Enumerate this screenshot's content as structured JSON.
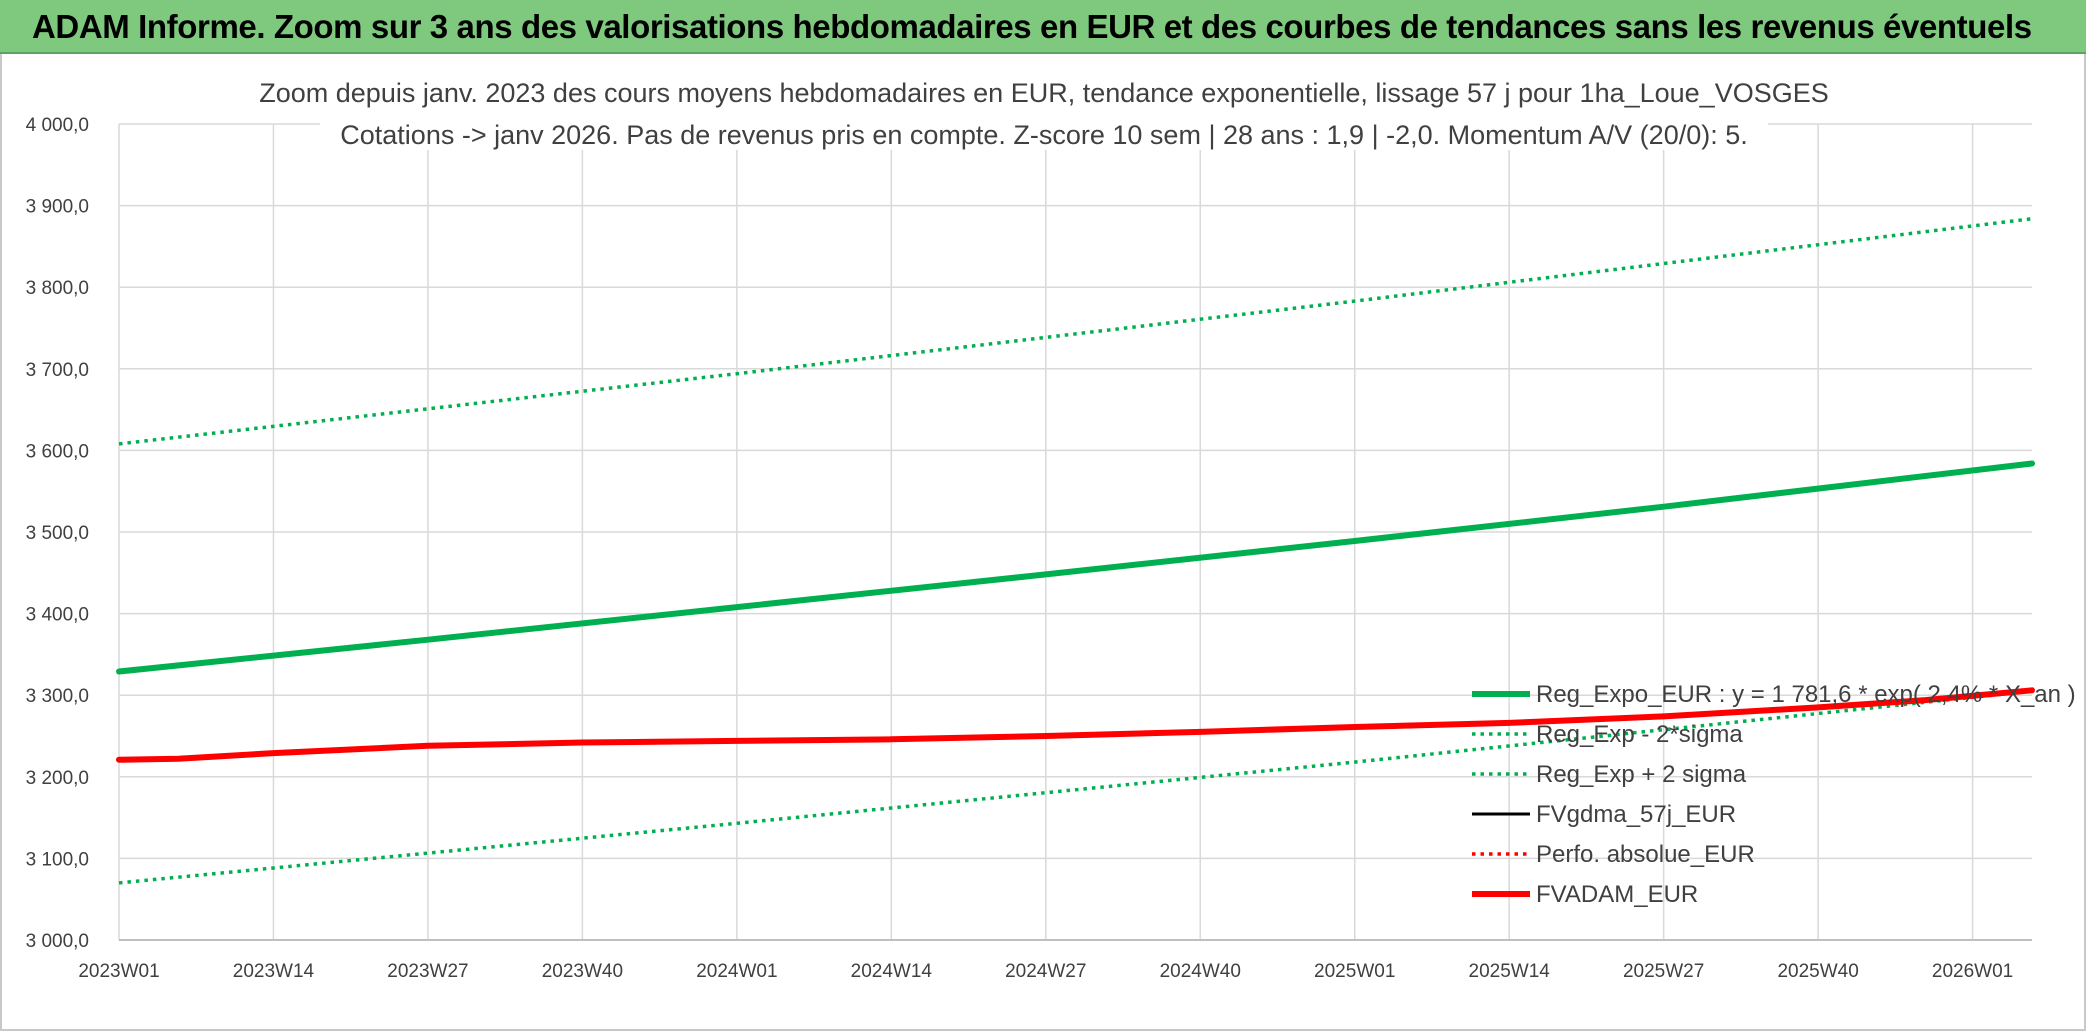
{
  "banner": {
    "title": "ADAM Informe. Zoom sur 3 ans des valorisations hebdomadaires en EUR et des courbes de tendances sans les revenus éventuels"
  },
  "chart_data": {
    "type": "line",
    "title_line1": "Zoom depuis janv. 2023 des cours moyens hebdomadaires en EUR, tendance exponentielle, lissage 57 j pour 1ha_Loue_VOSGES",
    "title_line2": "Cotations -> janv 2026. Pas de revenus pris en compte. Z-score 10 sem | 28 ans : 1,9 | -2,0. Momentum A/V (20/0): 5.",
    "x_tick_labels": [
      "2023W01",
      "2023W14",
      "2023W27",
      "2023W40",
      "2024W01",
      "2024W14",
      "2024W27",
      "2024W40",
      "2025W01",
      "2025W14",
      "2025W27",
      "2025W40",
      "2026W01"
    ],
    "x_range_weeks": [
      0,
      161
    ],
    "ylim": [
      3000,
      4000
    ],
    "y_ticks": [
      3000,
      3100,
      3200,
      3300,
      3400,
      3500,
      3600,
      3700,
      3800,
      3900,
      4000
    ],
    "y_tick_labels": [
      "3 000,0",
      "3 100,0",
      "3 200,0",
      "3 300,0",
      "3 400,0",
      "3 500,0",
      "3 600,0",
      "3 700,0",
      "3 800,0",
      "3 900,0",
      "4 000,0"
    ],
    "grid": true,
    "legend_position": "bottom-right",
    "series": [
      {
        "name": "Reg_Expo_EUR : y = 1 781,6 * exp( 2,4% * X_an )",
        "color": "#00b050",
        "style": "solid-thick",
        "points": [
          [
            0,
            3329
          ],
          [
            26,
            3368
          ],
          [
            52,
            3408
          ],
          [
            78,
            3448
          ],
          [
            104,
            3489
          ],
          [
            130,
            3531
          ],
          [
            161,
            3584
          ]
        ]
      },
      {
        "name": "Reg_Exp - 2*sigma",
        "color": "#00b050",
        "style": "dotted",
        "points": [
          [
            0,
            3070
          ],
          [
            52,
            3143
          ],
          [
            104,
            3218
          ],
          [
            161,
            3305
          ]
        ]
      },
      {
        "name": "Reg_Exp + 2 sigma",
        "color": "#00b050",
        "style": "dotted",
        "points": [
          [
            0,
            3608
          ],
          [
            52,
            3694
          ],
          [
            104,
            3783
          ],
          [
            161,
            3884
          ]
        ]
      },
      {
        "name": "FVgdma_57j_EUR",
        "color": "#000000",
        "style": "solid",
        "points": [
          [
            0,
            3221
          ],
          [
            5,
            3222
          ],
          [
            13,
            3229
          ],
          [
            26,
            3238
          ],
          [
            39,
            3242
          ],
          [
            52,
            3244
          ],
          [
            65,
            3246
          ],
          [
            78,
            3250
          ],
          [
            91,
            3255
          ],
          [
            104,
            3261
          ],
          [
            117,
            3266
          ],
          [
            130,
            3274
          ],
          [
            143,
            3285
          ],
          [
            152,
            3294
          ],
          [
            161,
            3306
          ]
        ]
      },
      {
        "name": "Perfo. absolue_EUR",
        "color": "#ff0000",
        "style": "dotted",
        "points": [
          [
            0,
            3221
          ],
          [
            5,
            3222
          ],
          [
            13,
            3229
          ],
          [
            26,
            3238
          ],
          [
            39,
            3242
          ],
          [
            52,
            3244
          ],
          [
            65,
            3246
          ],
          [
            78,
            3250
          ],
          [
            91,
            3255
          ],
          [
            104,
            3261
          ],
          [
            117,
            3266
          ],
          [
            130,
            3274
          ],
          [
            143,
            3285
          ],
          [
            152,
            3294
          ],
          [
            161,
            3306
          ]
        ]
      },
      {
        "name": "FVADAM_EUR",
        "color": "#ff0000",
        "style": "solid-thick",
        "points": [
          [
            0,
            3221
          ],
          [
            5,
            3222
          ],
          [
            13,
            3229
          ],
          [
            26,
            3238
          ],
          [
            39,
            3242
          ],
          [
            52,
            3244
          ],
          [
            65,
            3246
          ],
          [
            78,
            3250
          ],
          [
            91,
            3255
          ],
          [
            104,
            3261
          ],
          [
            117,
            3266
          ],
          [
            130,
            3274
          ],
          [
            143,
            3285
          ],
          [
            152,
            3294
          ],
          [
            161,
            3306
          ]
        ]
      }
    ]
  }
}
